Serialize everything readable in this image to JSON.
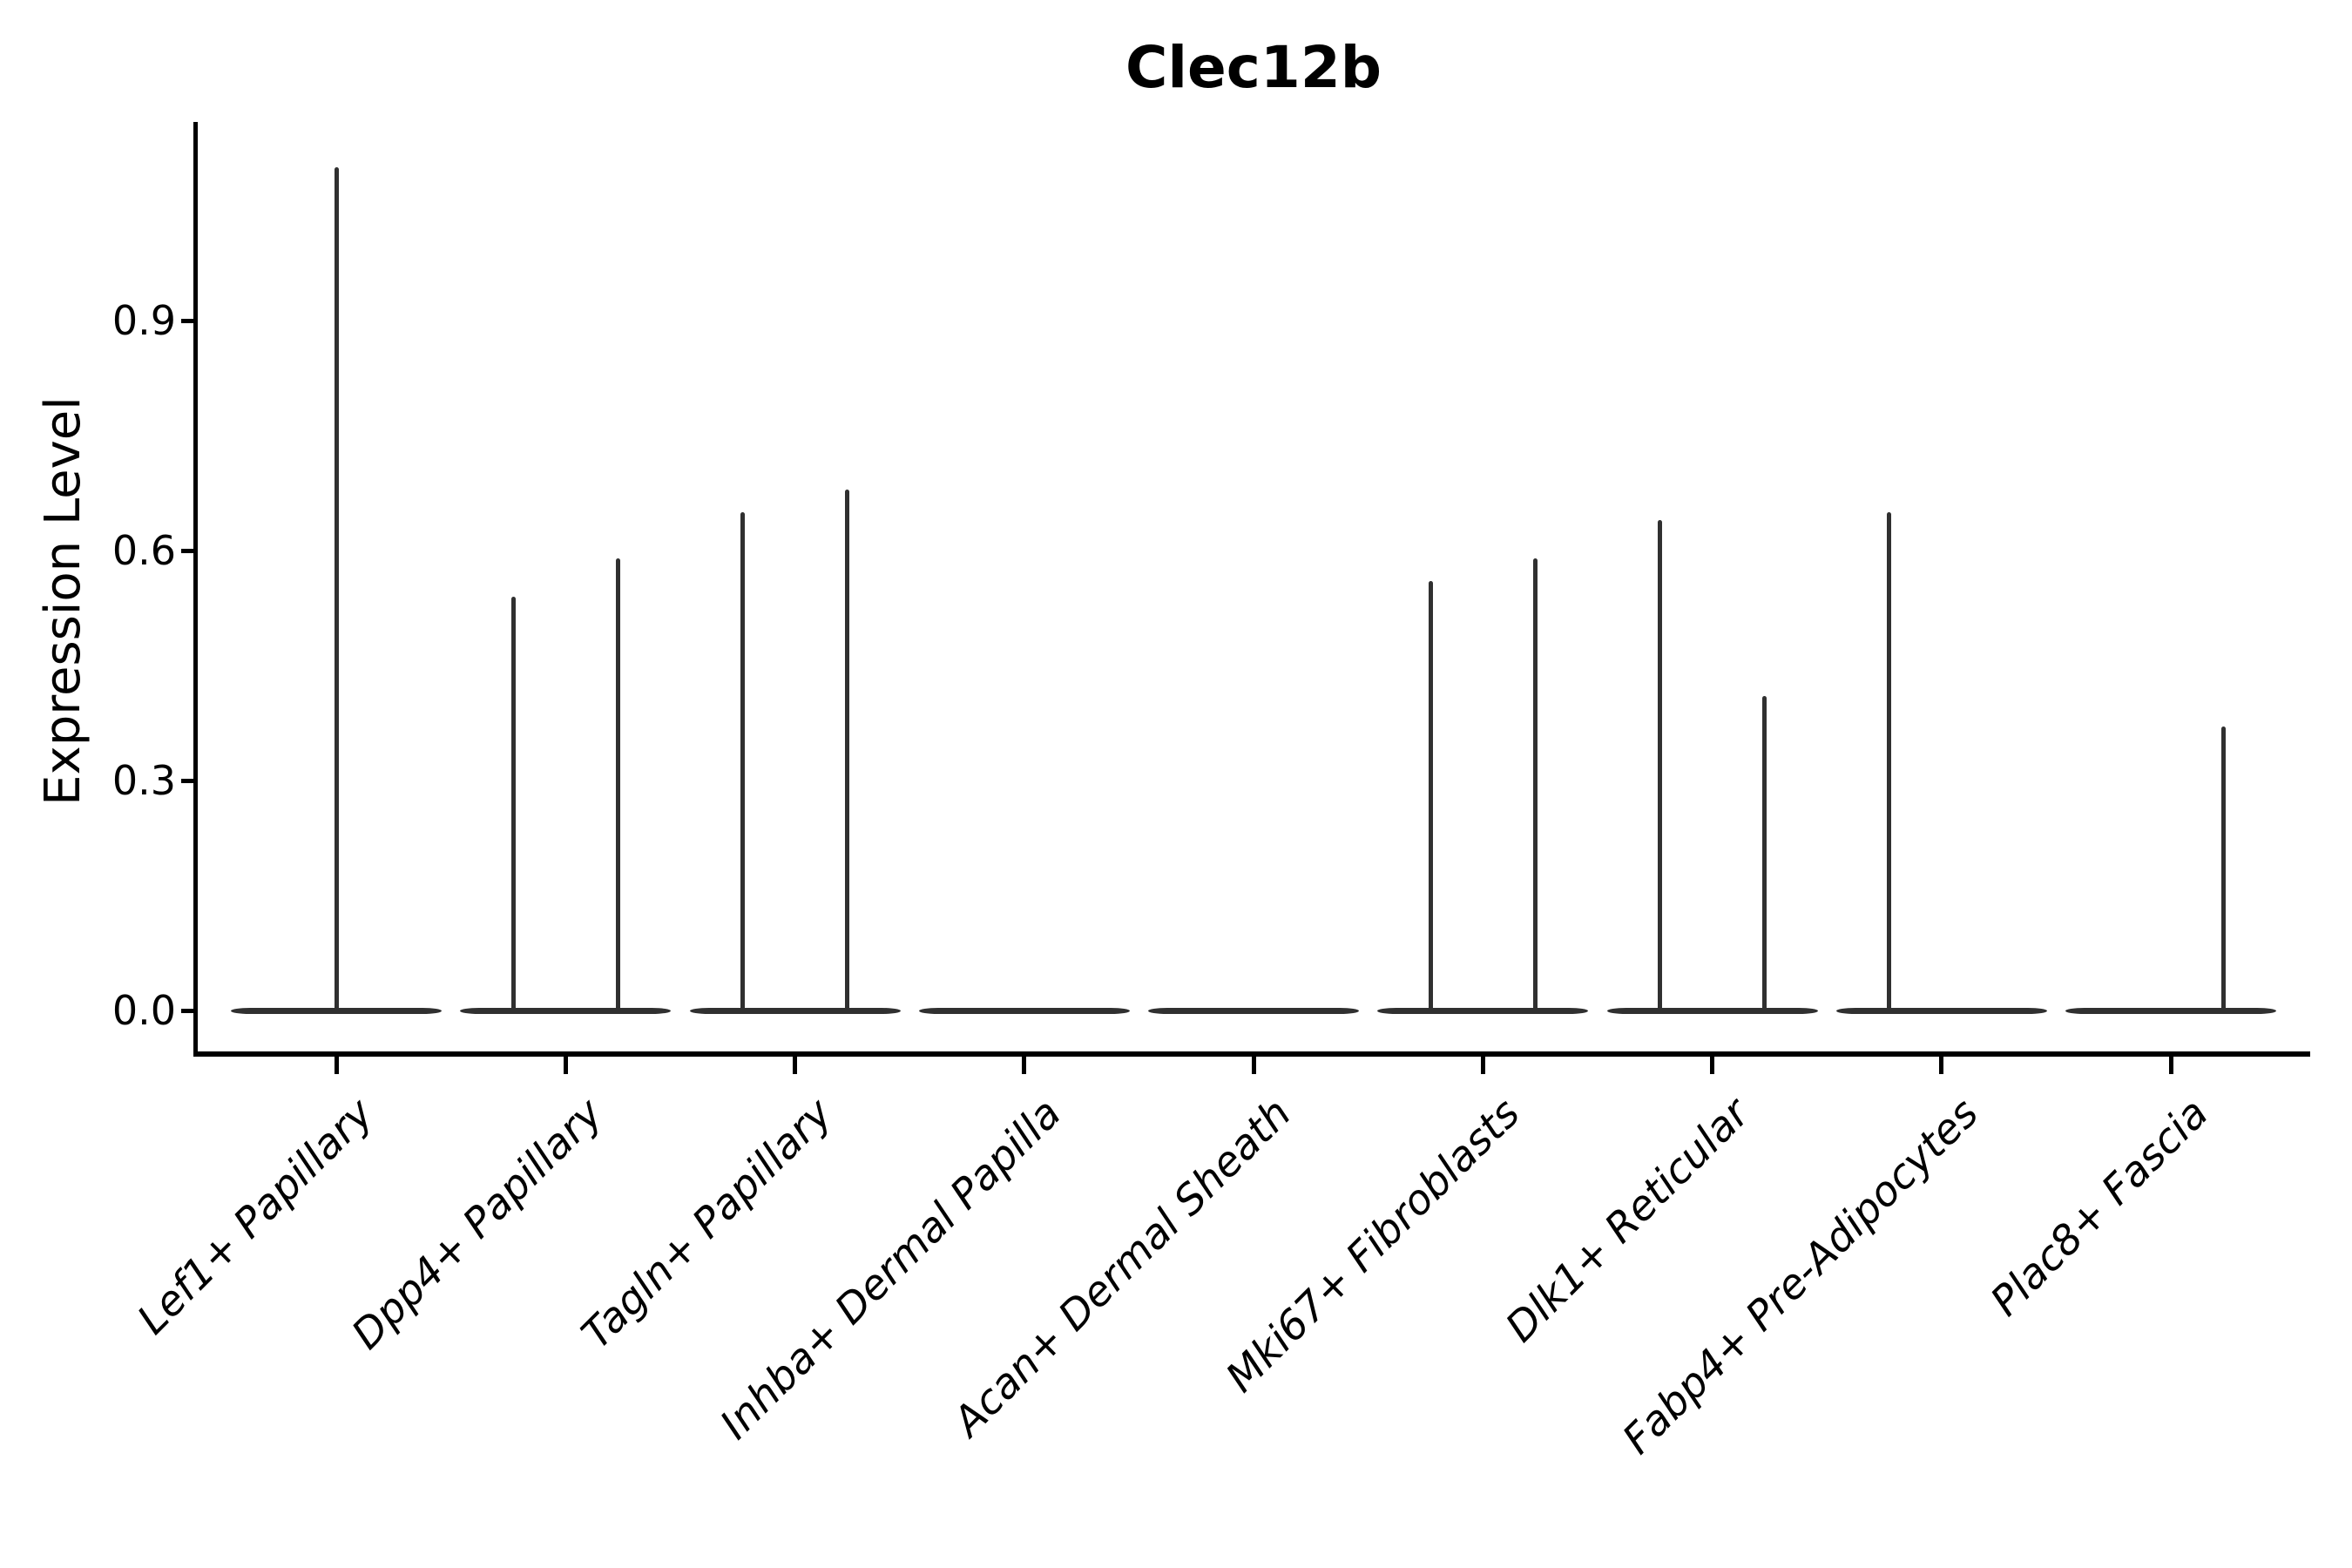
{
  "title": "Clec12b",
  "axes": {
    "ylabel": "Expression Level",
    "ytick_labels": [
      "0.0",
      "0.3",
      "0.6",
      "0.9"
    ]
  },
  "chart_data": {
    "type": "violin",
    "title": "Clec12b",
    "xlabel": "",
    "ylabel": "Expression Level",
    "ylim": [
      0,
      1.16
    ],
    "yticks": [
      0.0,
      0.3,
      0.6,
      0.9
    ],
    "ytick_labels": [
      "0.0",
      "0.3",
      "0.6",
      "0.9"
    ],
    "grid": false,
    "legend": "none",
    "x_tick_rotation_deg": 45,
    "categories": [
      "Lef1+ Papillary",
      "Dpp4+ Papillary",
      "Tagln+ Papillary",
      "Inhba+ Dermal Papilla",
      "Acan+ Dermal Sheath",
      "Mki67+ Fibroblasts",
      "Dlk1+ Reticular",
      "Fabp4+ Pre-Adipocytes",
      "Plac8+ Fascia"
    ],
    "violins": [
      {
        "category": "Lef1+ Papillary",
        "baseline_value": 0.0,
        "spikes": [
          {
            "side": "center",
            "value": 1.1
          }
        ]
      },
      {
        "category": "Dpp4+ Papillary",
        "baseline_value": 0.0,
        "spikes": [
          {
            "side": "left",
            "value": 0.54
          },
          {
            "side": "right",
            "value": 0.59
          }
        ]
      },
      {
        "category": "Tagln+ Papillary",
        "baseline_value": 0.0,
        "spikes": [
          {
            "side": "left",
            "value": 0.65
          },
          {
            "side": "right",
            "value": 0.68
          }
        ]
      },
      {
        "category": "Inhba+ Dermal Papilla",
        "baseline_value": 0.0,
        "spikes": []
      },
      {
        "category": "Acan+ Dermal Sheath",
        "baseline_value": 0.0,
        "spikes": []
      },
      {
        "category": "Mki67+ Fibroblasts",
        "baseline_value": 0.0,
        "spikes": [
          {
            "side": "left",
            "value": 0.56
          },
          {
            "side": "right",
            "value": 0.59
          }
        ]
      },
      {
        "category": "Dlk1+ Reticular",
        "baseline_value": 0.0,
        "spikes": [
          {
            "side": "left",
            "value": 0.64
          },
          {
            "side": "right",
            "value": 0.41
          }
        ]
      },
      {
        "category": "Fabp4+ Pre-Adipocytes",
        "baseline_value": 0.0,
        "spikes": [
          {
            "side": "left",
            "value": 0.65
          }
        ]
      },
      {
        "category": "Plac8+ Fascia",
        "baseline_value": 0.0,
        "spikes": [
          {
            "side": "right",
            "value": 0.37
          }
        ]
      }
    ],
    "colors": {
      "violin_line": "#303030",
      "axis": "#000000",
      "text": "#000000",
      "background": "#ffffff"
    }
  }
}
